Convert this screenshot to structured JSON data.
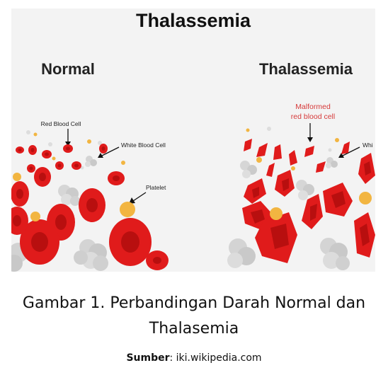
{
  "figure": {
    "title": "Thalassemia",
    "left_panel": {
      "heading": "Normal",
      "labels": {
        "red_blood_cell": "Red Blood Cell",
        "white_blood_cell": "White Blood Cell",
        "platelet": "Platelet"
      }
    },
    "right_panel": {
      "heading": "Thalassemia",
      "labels": {
        "malformed_line1": "Malformed",
        "malformed_line2": "red blood cell",
        "white_cut": "Whi"
      }
    },
    "colors": {
      "red_cell": "#e01b1b",
      "red_cell_dark": "#b80f0f",
      "malformed_label": "#d63a3a",
      "platelet": "#f2b541",
      "wbc": "#d8d8d8"
    }
  },
  "caption": {
    "line1": "Gambar 1. Perbandingan Darah Normal dan",
    "line2": "Thalasemia"
  },
  "source": {
    "label": "Sumber",
    "text": ": iki.wikipedia.com"
  }
}
